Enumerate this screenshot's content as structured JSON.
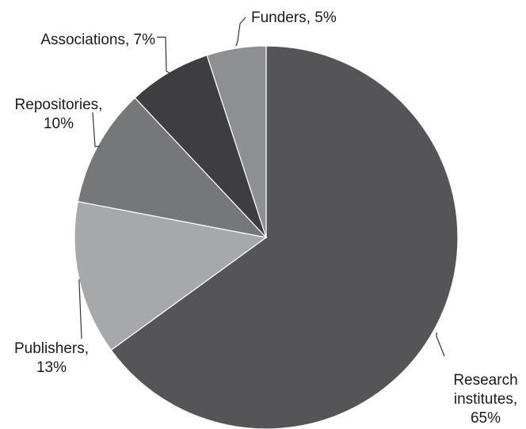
{
  "chart_data": {
    "type": "pie",
    "title": "",
    "start": "12 o'clock",
    "direction": "clockwise",
    "slices": [
      {
        "label": "Research institutes",
        "value": 65,
        "color": "#555557",
        "label_lines": [
          "Research",
          "institutes,",
          "65%"
        ]
      },
      {
        "label": "Publishers",
        "value": 13,
        "color": "#a7a8aa",
        "label_lines": [
          "Publishers,",
          "13%"
        ]
      },
      {
        "label": "Repositories",
        "value": 10,
        "color": "#767779",
        "label_lines": [
          "Repositories,",
          "10%"
        ]
      },
      {
        "label": "Associations",
        "value": 7,
        "color": "#3e3e40",
        "label_lines": [
          "Associations, 7%"
        ]
      },
      {
        "label": "Funders",
        "value": 5,
        "color": "#8e8f91",
        "label_lines": [
          "Funders, 5%"
        ]
      }
    ]
  }
}
